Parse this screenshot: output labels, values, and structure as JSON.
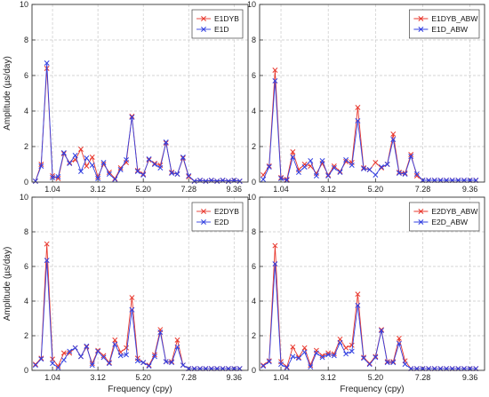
{
  "chart_data": [
    {
      "type": "line",
      "xlabel": "",
      "ylabel": "Amplitude (µs/day)",
      "xticks": [
        "1.04",
        "3.12",
        "5.20",
        "7.28",
        "9.36"
      ],
      "xtick_values": [
        1.04,
        3.12,
        5.2,
        7.28,
        9.36
      ],
      "yticks": [
        "0",
        "2",
        "4",
        "6",
        "8",
        "10"
      ],
      "xlim": [
        0.1,
        10.0
      ],
      "ylim": [
        0,
        10
      ],
      "grid": true,
      "legend_position": "top-right",
      "x": [
        0.26,
        0.52,
        0.78,
        1.04,
        1.3,
        1.56,
        1.82,
        2.08,
        2.34,
        2.6,
        2.86,
        3.12,
        3.38,
        3.64,
        3.9,
        4.16,
        4.42,
        4.68,
        4.94,
        5.2,
        5.46,
        5.72,
        5.98,
        6.24,
        6.5,
        6.76,
        7.02,
        7.28,
        7.54,
        7.8,
        8.06,
        8.32,
        8.58,
        8.84,
        9.1,
        9.36,
        9.62
      ],
      "series": [
        {
          "name": "E1DYB",
          "color": "#e8382e",
          "marker": "x",
          "values": [
            0.05,
            1.0,
            6.4,
            0.35,
            0.2,
            1.6,
            1.1,
            1.25,
            1.85,
            0.9,
            1.4,
            0.3,
            1.0,
            0.55,
            0.2,
            0.8,
            1.1,
            3.7,
            0.65,
            0.45,
            1.25,
            1.05,
            0.95,
            2.2,
            0.55,
            0.45,
            1.35,
            0.3,
            0.05,
            0.1,
            0.05,
            0.1,
            0.05,
            0.1,
            0.05,
            0.1,
            0.05
          ]
        },
        {
          "name": "E1D",
          "color": "#3340e0",
          "marker": "x",
          "values": [
            0.05,
            0.9,
            6.7,
            0.25,
            0.3,
            1.65,
            1.05,
            1.5,
            0.6,
            1.35,
            0.95,
            0.2,
            1.1,
            0.45,
            0.15,
            0.7,
            1.25,
            3.65,
            0.6,
            0.4,
            1.3,
            1.0,
            0.8,
            2.25,
            0.5,
            0.45,
            1.4,
            0.35,
            0.05,
            0.1,
            0.05,
            0.1,
            0.05,
            0.1,
            0.05,
            0.1,
            0.05
          ]
        }
      ]
    },
    {
      "type": "line",
      "xlabel": "",
      "ylabel": "",
      "xticks": [
        "1.04",
        "3.12",
        "5.20",
        "7.28",
        "9.36"
      ],
      "xtick_values": [
        1.04,
        3.12,
        5.2,
        7.28,
        9.36
      ],
      "yticks": [
        "0",
        "2",
        "4",
        "6",
        "8",
        "10"
      ],
      "xlim": [
        0.1,
        10.0
      ],
      "ylim": [
        0,
        10
      ],
      "grid": true,
      "legend_position": "top-right",
      "x": [
        0.26,
        0.52,
        0.78,
        1.04,
        1.3,
        1.56,
        1.82,
        2.08,
        2.34,
        2.6,
        2.86,
        3.12,
        3.38,
        3.64,
        3.9,
        4.16,
        4.42,
        4.68,
        4.94,
        5.2,
        5.46,
        5.72,
        5.98,
        6.24,
        6.5,
        6.76,
        7.02,
        7.28,
        7.54,
        7.8,
        8.06,
        8.32,
        8.58,
        8.84,
        9.1,
        9.36,
        9.62
      ],
      "series": [
        {
          "name": "E1DYB_ABW",
          "color": "#e8382e",
          "marker": "x",
          "values": [
            0.4,
            0.9,
            6.3,
            0.25,
            0.15,
            1.7,
            0.7,
            1.0,
            0.9,
            0.5,
            1.05,
            0.4,
            0.9,
            0.6,
            1.15,
            1.1,
            4.2,
            0.8,
            0.7,
            1.1,
            0.8,
            1.0,
            2.7,
            0.55,
            0.5,
            1.55,
            0.35,
            0.1,
            0.1,
            0.1,
            0.1,
            0.1,
            0.1,
            0.1,
            0.1,
            0.1,
            0.1
          ]
        },
        {
          "name": "E1D_ABW",
          "color": "#3340e0",
          "marker": "x",
          "values": [
            0.15,
            0.85,
            5.7,
            0.2,
            0.1,
            1.4,
            0.55,
            0.85,
            1.2,
            0.35,
            1.2,
            0.35,
            0.8,
            0.55,
            1.25,
            0.95,
            3.45,
            0.75,
            0.7,
            0.4,
            0.85,
            1.0,
            2.4,
            0.5,
            0.45,
            1.45,
            0.45,
            0.1,
            0.1,
            0.1,
            0.1,
            0.1,
            0.1,
            0.1,
            0.1,
            0.1,
            0.1
          ]
        }
      ]
    },
    {
      "type": "line",
      "xlabel": "Frequency (cpy)",
      "ylabel": "Amplitude (µs/day)",
      "xticks": [
        "1.04",
        "3.12",
        "5.20",
        "7.28",
        "9.36"
      ],
      "xtick_values": [
        1.04,
        3.12,
        5.2,
        7.28,
        9.36
      ],
      "yticks": [
        "0",
        "2",
        "4",
        "6",
        "8",
        "10"
      ],
      "xlim": [
        0.1,
        10.0
      ],
      "ylim": [
        0,
        10
      ],
      "grid": true,
      "legend_position": "top-right",
      "x": [
        0.26,
        0.52,
        0.78,
        1.04,
        1.3,
        1.56,
        1.82,
        2.08,
        2.34,
        2.6,
        2.86,
        3.12,
        3.38,
        3.64,
        3.9,
        4.16,
        4.42,
        4.68,
        4.94,
        5.2,
        5.46,
        5.72,
        5.98,
        6.24,
        6.5,
        6.76,
        7.02,
        7.28,
        7.54,
        7.8,
        8.06,
        8.32,
        8.58,
        8.84,
        9.1,
        9.36,
        9.62
      ],
      "series": [
        {
          "name": "E2DYB",
          "color": "#e8382e",
          "marker": "x",
          "values": [
            0.35,
            0.7,
            7.3,
            0.65,
            0.25,
            1.0,
            1.0,
            1.3,
            0.8,
            1.35,
            0.4,
            1.15,
            0.85,
            0.45,
            1.75,
            1.05,
            1.3,
            4.2,
            0.7,
            0.45,
            0.3,
            0.9,
            2.35,
            0.5,
            0.5,
            1.75,
            0.3,
            0.1,
            0.1,
            0.1,
            0.1,
            0.1,
            0.1,
            0.1,
            0.1,
            0.1,
            0.1
          ]
        },
        {
          "name": "E2D",
          "color": "#3340e0",
          "marker": "x",
          "values": [
            0.3,
            0.65,
            6.35,
            0.4,
            0.15,
            0.6,
            1.1,
            1.3,
            0.8,
            1.4,
            0.3,
            1.1,
            0.75,
            0.4,
            1.5,
            0.85,
            0.9,
            3.5,
            0.55,
            0.45,
            0.25,
            0.8,
            2.2,
            0.5,
            0.45,
            1.35,
            0.3,
            0.1,
            0.1,
            0.1,
            0.1,
            0.1,
            0.1,
            0.1,
            0.1,
            0.1,
            0.1
          ]
        }
      ]
    },
    {
      "type": "line",
      "xlabel": "Frequency (cpy)",
      "ylabel": "",
      "xticks": [
        "1.04",
        "3.12",
        "5.20",
        "7.28",
        "9.36"
      ],
      "xtick_values": [
        1.04,
        3.12,
        5.2,
        7.28,
        9.36
      ],
      "yticks": [
        "0",
        "2",
        "4",
        "6",
        "8",
        "10"
      ],
      "xlim": [
        0.1,
        10.0
      ],
      "ylim": [
        0,
        10
      ],
      "grid": true,
      "legend_position": "top-right",
      "x": [
        0.26,
        0.52,
        0.78,
        1.04,
        1.3,
        1.56,
        1.82,
        2.08,
        2.34,
        2.6,
        2.86,
        3.12,
        3.38,
        3.64,
        3.9,
        4.16,
        4.42,
        4.68,
        4.94,
        5.2,
        5.46,
        5.72,
        5.98,
        6.24,
        6.5,
        6.76,
        7.02,
        7.28,
        7.54,
        7.8,
        8.06,
        8.32,
        8.58,
        8.84,
        9.1,
        9.36,
        9.62
      ],
      "series": [
        {
          "name": "E2DYB_ABW",
          "color": "#e8382e",
          "marker": "x",
          "values": [
            0.3,
            0.55,
            7.2,
            0.5,
            0.2,
            1.35,
            0.75,
            1.3,
            0.3,
            1.15,
            0.85,
            1.0,
            0.95,
            1.8,
            1.3,
            1.45,
            4.4,
            0.75,
            0.4,
            0.8,
            2.35,
            0.5,
            0.5,
            1.85,
            0.55,
            0.1,
            0.1,
            0.1,
            0.1,
            0.1,
            0.1,
            0.1,
            0.1,
            0.1,
            0.1,
            0.1,
            0.1
          ]
        },
        {
          "name": "E2D_ABW",
          "color": "#3340e0",
          "marker": "x",
          "values": [
            0.25,
            0.5,
            6.15,
            0.35,
            0.15,
            0.8,
            0.7,
            1.05,
            0.2,
            1.0,
            0.75,
            0.9,
            0.85,
            1.6,
            0.95,
            1.1,
            3.75,
            0.7,
            0.35,
            0.75,
            2.3,
            0.45,
            0.45,
            1.55,
            0.35,
            0.1,
            0.1,
            0.1,
            0.1,
            0.1,
            0.1,
            0.1,
            0.1,
            0.1,
            0.1,
            0.1,
            0.1
          ]
        }
      ]
    }
  ]
}
